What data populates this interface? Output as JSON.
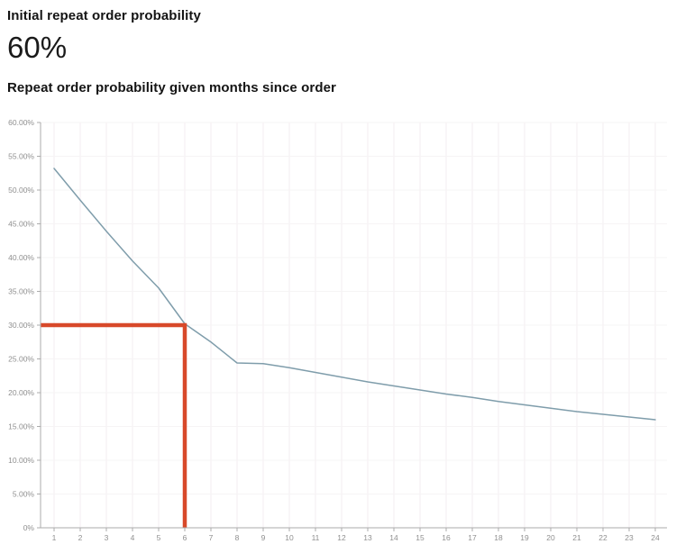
{
  "header": {
    "metric_label": "Initial repeat order probability",
    "metric_value": "60%",
    "chart_title": "Repeat order probability given months since order"
  },
  "chart_data": {
    "type": "line",
    "x": [
      1,
      2,
      3,
      4,
      5,
      6,
      7,
      8,
      9,
      10,
      11,
      12,
      13,
      14,
      15,
      16,
      17,
      18,
      19,
      20,
      21,
      22,
      23,
      24
    ],
    "values": [
      53.2,
      48.5,
      43.9,
      39.5,
      35.5,
      30.2,
      27.5,
      24.4,
      24.3,
      23.7,
      23.0,
      22.3,
      21.6,
      21.0,
      20.4,
      19.8,
      19.3,
      18.7,
      18.2,
      17.7,
      17.2,
      16.8,
      16.4,
      16.0
    ],
    "title": "Repeat order probability given months since order",
    "xlabel": "",
    "ylabel": "",
    "xlim": [
      1,
      24
    ],
    "ylim": [
      0,
      60
    ],
    "grid": true,
    "legend": "none",
    "y_tick_values": [
      0,
      5,
      10,
      15,
      20,
      25,
      30,
      35,
      40,
      45,
      50,
      55,
      60
    ],
    "y_tick_labels": [
      "0%",
      "5.00%",
      "10.00%",
      "15.00%",
      "20.00%",
      "25.00%",
      "30.00%",
      "35.00%",
      "40.00%",
      "45.00%",
      "50.00%",
      "55.00%",
      "60.00%"
    ],
    "annotation": {
      "x": 6,
      "y": 30,
      "shape": "crosshair-from-axes",
      "color": "#d8492a"
    },
    "colors": {
      "line": "#7f9dab",
      "annotation": "#d8492a",
      "axis": "#ababab",
      "tick_label": "#8f8f8f",
      "grid_vertical": "#f3eef1",
      "grid_horizontal": "#f6f4f5"
    }
  }
}
